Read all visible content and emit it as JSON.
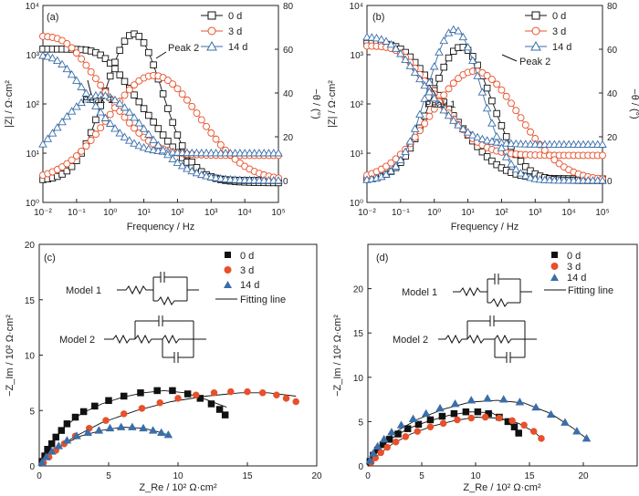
{
  "colors": {
    "d0": "#111111",
    "d3": "#e8502a",
    "d14": "#3a6ea8",
    "fit": "#111111"
  },
  "panels": {
    "a": {
      "label": "(a)",
      "xlabel": "Frequency / Hz",
      "ylabel_left": "|Z| / Ω·cm²",
      "ylabel_right": "−θ / (°)",
      "legend": [
        "0 d",
        "3 d",
        "14 d"
      ],
      "annotations": [
        "Peak 1",
        "Peak 2"
      ],
      "x_ticks": [
        "10⁻²",
        "10⁻¹",
        "10⁰",
        "10¹",
        "10²",
        "10³",
        "10⁴",
        "10⁵"
      ],
      "y_ticks": [
        "10⁰",
        "10¹",
        "10²",
        "10³",
        "10⁴"
      ],
      "yr_ticks": [
        "0",
        "20",
        "40",
        "60",
        "80"
      ]
    },
    "b": {
      "label": "(b)",
      "xlabel": "Frequency / Hz",
      "ylabel_left": "|Z| / Ω·cm²",
      "ylabel_right": "−θ / (°)",
      "legend": [
        "0 d",
        "3 d",
        "14 d"
      ],
      "annotations": [
        "Peak 1",
        "Peak 2"
      ],
      "x_ticks": [
        "10⁻²",
        "10⁻¹",
        "10⁰",
        "10¹",
        "10²",
        "10³",
        "10⁴",
        "10⁵"
      ],
      "y_ticks": [
        "10⁰",
        "10¹",
        "10²",
        "10³",
        "10⁴"
      ],
      "yr_ticks": [
        "0",
        "20",
        "40",
        "60",
        "80"
      ]
    },
    "c": {
      "label": "(c)",
      "xlabel": "Z_Re / 10² Ω·cm²",
      "ylabel": "−Z_Im / 10² Ω·cm²",
      "legend": [
        "0 d",
        "3 d",
        "14 d",
        "Fitting line"
      ],
      "model1": "Model 1",
      "model2": "Model 2",
      "x_ticks": [
        "0",
        "5",
        "10",
        "15",
        "20"
      ],
      "y_ticks": [
        "0",
        "5",
        "10",
        "15",
        "20"
      ]
    },
    "d": {
      "label": "(d)",
      "xlabel": "Z_Re / 10² Ω·cm²",
      "ylabel": "−Z_Im / 10² Ω·cm²",
      "legend": [
        "0 d",
        "3 d",
        "14 d",
        "Fitting line"
      ],
      "model1": "Model 1",
      "model2": "Model 2",
      "x_ticks": [
        "0",
        "5",
        "10",
        "15",
        "20"
      ],
      "y_ticks": [
        "0",
        "5",
        "10",
        "15",
        "20"
      ]
    }
  },
  "chart_data": [
    {
      "panel": "a",
      "type": "line",
      "xscale": "log",
      "xlim": [
        0.01,
        100000
      ],
      "ylim_left": [
        1,
        10000
      ],
      "ylim_right": [
        -10,
        80
      ],
      "series": [
        {
          "name": "0 d",
          "modulus": {
            "Rs": 2.5,
            "R": 1300,
            "fc": 0.6
          },
          "phase": {
            "peak": 67,
            "log_fpeak": 0.7,
            "width": 0.85
          }
        },
        {
          "name": "3 d",
          "modulus": {
            "Rs": 9,
            "R": 2400,
            "fc": 0.05
          },
          "phase": {
            "peak": 48,
            "log_fpeak": 1.3,
            "width": 1.35
          }
        },
        {
          "name": "14 d",
          "modulus": {
            "Rs": 10,
            "R": 1000,
            "fc": 0.03
          },
          "phase": {
            "peak": 39,
            "log_fpeak": -0.3,
            "width": 1.3
          }
        }
      ]
    },
    {
      "panel": "b",
      "type": "line",
      "xscale": "log",
      "xlim": [
        0.01,
        100000
      ],
      "ylim_left": [
        1,
        10000
      ],
      "ylim_right": [
        -10,
        80
      ],
      "series": [
        {
          "name": "0 d",
          "modulus": {
            "Rs": 3,
            "R": 1700,
            "fc": 0.12
          },
          "phase": {
            "peak": 61,
            "log_fpeak": 0.8,
            "width": 0.9
          }
        },
        {
          "name": "3 d",
          "modulus": {
            "Rs": 9,
            "R": 1500,
            "fc": 0.1
          },
          "phase": {
            "peak": 50,
            "log_fpeak": 1.2,
            "width": 1.3
          }
        },
        {
          "name": "14 d",
          "modulus": {
            "Rs": 15,
            "R": 2300,
            "fc": 0.05
          },
          "phase": {
            "peak": 69,
            "log_fpeak": 0.6,
            "width": 0.8
          }
        }
      ]
    },
    {
      "panel": "c",
      "type": "scatter",
      "xlim": [
        0,
        20
      ],
      "ylim": [
        0,
        20
      ],
      "series": [
        {
          "name": "0 d",
          "x": [
            0.2,
            0.4,
            0.6,
            0.9,
            1.2,
            1.6,
            2.0,
            2.6,
            3.2,
            4.0,
            5.0,
            6.1,
            7.3,
            8.5,
            9.6,
            10.7,
            11.6,
            12.4,
            13.0,
            13.4
          ],
          "y": [
            0.4,
            0.9,
            1.5,
            2.0,
            2.6,
            3.2,
            3.8,
            4.4,
            4.9,
            5.4,
            5.9,
            6.3,
            6.6,
            6.8,
            6.8,
            6.5,
            6.1,
            5.6,
            5.1,
            4.6
          ]
        },
        {
          "name": "3 d",
          "x": [
            0.3,
            0.7,
            1.2,
            1.8,
            2.6,
            3.6,
            4.8,
            6.1,
            7.4,
            8.7,
            10.0,
            11.3,
            12.6,
            13.8,
            15.0,
            16.1,
            17.1,
            17.8,
            18.5
          ],
          "y": [
            0.3,
            0.8,
            1.4,
            2.0,
            2.7,
            3.4,
            4.1,
            4.7,
            5.2,
            5.7,
            6.1,
            6.4,
            6.6,
            6.7,
            6.7,
            6.6,
            6.4,
            6.1,
            5.8
          ]
        },
        {
          "name": "14 d",
          "x": [
            0.2,
            0.5,
            0.9,
            1.4,
            2.0,
            2.7,
            3.5,
            4.3,
            5.1,
            5.9,
            6.7,
            7.5,
            8.2,
            8.8,
            9.3
          ],
          "y": [
            0.3,
            0.8,
            1.3,
            1.8,
            2.3,
            2.7,
            3.0,
            3.2,
            3.4,
            3.5,
            3.5,
            3.4,
            3.2,
            3.0,
            2.8
          ]
        }
      ],
      "fits": [
        {
          "series": "0 d",
          "x": [
            0,
            0.8,
            1.8,
            3,
            4.5,
            6,
            7.5,
            9,
            10.5,
            12,
            13.5
          ],
          "y": [
            0,
            2,
            3.5,
            4.7,
            5.6,
            6.2,
            6.6,
            6.8,
            6.6,
            6,
            5.3
          ]
        },
        {
          "series": "3 d",
          "x": [
            0,
            1,
            2.5,
            4.5,
            7,
            9.5,
            12,
            14.5,
            16.5,
            18.5
          ],
          "y": [
            0,
            1.3,
            2.6,
            3.9,
            5,
            5.8,
            6.3,
            6.6,
            6.6,
            6.3
          ]
        },
        {
          "series": "14 d",
          "x": [
            0,
            0.7,
            1.7,
            3,
            4.5,
            6,
            7.5,
            8.5,
            9.3
          ],
          "y": [
            0,
            1,
            1.9,
            2.7,
            3.2,
            3.5,
            3.4,
            3.1,
            2.8
          ]
        }
      ]
    },
    {
      "panel": "d",
      "type": "scatter",
      "xlim": [
        0,
        25
      ],
      "ylim": [
        0,
        25
      ],
      "series": [
        {
          "name": "0 d",
          "x": [
            0.2,
            0.5,
            0.9,
            1.4,
            2.0,
            2.8,
            3.7,
            4.7,
            5.8,
            6.9,
            8.0,
            9.1,
            10.2,
            11.2,
            12.2,
            13.0,
            13.6,
            14.0
          ],
          "y": [
            0.5,
            1.2,
            1.8,
            2.4,
            3.0,
            3.6,
            4.2,
            4.7,
            5.2,
            5.6,
            5.9,
            6.1,
            6.1,
            5.9,
            5.5,
            5.0,
            4.4,
            3.7
          ]
        },
        {
          "name": "3 d",
          "x": [
            0.3,
            0.7,
            1.2,
            1.8,
            2.6,
            3.5,
            4.6,
            5.8,
            7.0,
            8.3,
            9.6,
            10.9,
            12.2,
            13.4,
            14.5,
            15.4,
            16.1
          ],
          "y": [
            0.4,
            0.9,
            1.5,
            2.1,
            2.7,
            3.3,
            3.9,
            4.4,
            4.8,
            5.2,
            5.4,
            5.5,
            5.4,
            5.1,
            4.6,
            3.9,
            3.1
          ]
        },
        {
          "name": "14 d",
          "x": [
            0.2,
            0.5,
            0.9,
            1.5,
            2.2,
            3.1,
            4.2,
            5.4,
            6.7,
            8.1,
            9.6,
            11.1,
            12.6,
            14.1,
            15.6,
            17.0,
            18.3,
            19.4,
            20.3
          ],
          "y": [
            0.6,
            1.4,
            2.2,
            3.0,
            3.8,
            4.6,
            5.3,
            5.9,
            6.5,
            7.0,
            7.4,
            7.6,
            7.5,
            7.2,
            6.6,
            5.8,
            4.9,
            3.9,
            3.1
          ]
        }
      ],
      "fits": [
        {
          "series": "0 d",
          "x": [
            0,
            1,
            2.2,
            3.7,
            5.5,
            7.5,
            9.5,
            11.5,
            13,
            14
          ],
          "y": [
            0,
            1.9,
            3.1,
            4.2,
            5,
            5.7,
            6.1,
            6,
            5,
            3.7
          ]
        },
        {
          "series": "3 d",
          "x": [
            0,
            1,
            2.3,
            4,
            6,
            8,
            10,
            12,
            14,
            15.5,
            16.1
          ],
          "y": [
            0,
            1.3,
            2.5,
            3.6,
            4.5,
            5.1,
            5.5,
            5.4,
            4.8,
            3.8,
            3.1
          ]
        },
        {
          "series": "14 d",
          "x": [
            0,
            1,
            2.5,
            4.5,
            7,
            9.5,
            12,
            14.5,
            17,
            19,
            20.3
          ],
          "y": [
            0,
            2.1,
            3.8,
            5.2,
            6.4,
            7.2,
            7.4,
            7.1,
            5.9,
            4.3,
            3.1
          ]
        }
      ]
    }
  ]
}
